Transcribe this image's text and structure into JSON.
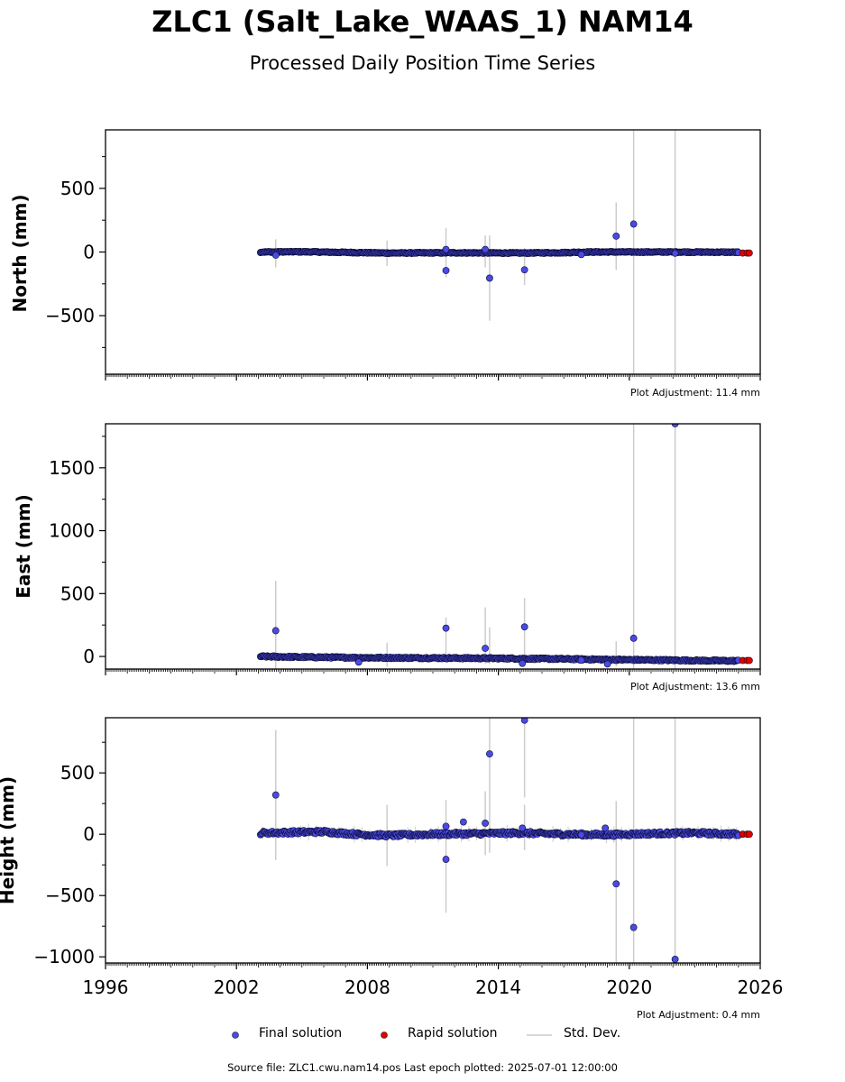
{
  "chart_data": {
    "title": "ZLC1 (Salt_Lake_WAAS_1) NAM14",
    "subtitle": "Processed Daily Position Time Series",
    "type": "scatter",
    "x_ticks": [
      1996,
      2002,
      2008,
      2014,
      2020,
      2026
    ],
    "xlim": [
      1996,
      2026
    ],
    "panels": [
      {
        "ylabel": "North (mm)",
        "ylim": [
          -960,
          960
        ],
        "y_ticks": [
          -500,
          0,
          500
        ],
        "y_tick_labels": [
          "−500",
          "0",
          "500"
        ],
        "adjustment": "Plot Adjustment: 11.4 mm",
        "baseline": [
          [
            2003.1,
            0
          ],
          [
            2005,
            2
          ],
          [
            2007,
            -3
          ],
          [
            2009,
            -8
          ],
          [
            2012,
            -6
          ],
          [
            2015,
            -8
          ],
          [
            2017,
            -5
          ],
          [
            2018,
            0
          ],
          [
            2020,
            0
          ],
          [
            2022,
            0
          ],
          [
            2024,
            -1
          ],
          [
            2025.0,
            -2
          ]
        ],
        "noise": 4,
        "final_points": [
          [
            2003.8,
            -25
          ],
          [
            2011.6,
            20
          ],
          [
            2011.6,
            -145
          ],
          [
            2013.4,
            20
          ],
          [
            2013.6,
            -205
          ],
          [
            2015.2,
            -140
          ],
          [
            2017.8,
            -20
          ],
          [
            2019.4,
            125
          ],
          [
            2020.2,
            220
          ],
          [
            2022.1,
            -10
          ],
          [
            2025.0,
            -5
          ]
        ],
        "rapid_points": [
          [
            2025.2,
            -8
          ],
          [
            2025.4,
            -8
          ],
          [
            2025.5,
            -8
          ]
        ],
        "std_dev": [
          [
            2003.8,
            -120,
            100
          ],
          [
            2008.9,
            -110,
            90
          ],
          [
            2011.6,
            -200,
            190
          ],
          [
            2013.4,
            -120,
            130
          ],
          [
            2013.6,
            -540,
            130
          ],
          [
            2015.2,
            -260,
            30
          ],
          [
            2019.4,
            -140,
            390
          ],
          [
            2020.2,
            -960,
            960
          ],
          [
            2022.1,
            -960,
            960
          ]
        ]
      },
      {
        "ylabel": "East (mm)",
        "ylim": [
          -100,
          1850
        ],
        "y_ticks": [
          0,
          500,
          1000,
          1500
        ],
        "y_tick_labels": [
          "0",
          "500",
          "1000",
          "1500"
        ],
        "adjustment": "Plot Adjustment: 13.6 mm",
        "baseline": [
          [
            2003.1,
            0
          ],
          [
            2005,
            -5
          ],
          [
            2008,
            -10
          ],
          [
            2011,
            -12
          ],
          [
            2014,
            -15
          ],
          [
            2017,
            -20
          ],
          [
            2019,
            -25
          ],
          [
            2021,
            -28
          ],
          [
            2023,
            -32
          ],
          [
            2025.0,
            -35
          ]
        ],
        "noise": 6,
        "final_points": [
          [
            2003.8,
            205
          ],
          [
            2007.6,
            -45
          ],
          [
            2011.6,
            225
          ],
          [
            2013.4,
            65
          ],
          [
            2015.2,
            235
          ],
          [
            2015.1,
            -55
          ],
          [
            2017.8,
            -30
          ],
          [
            2019.0,
            -60
          ],
          [
            2020.2,
            145
          ],
          [
            2022.1,
            1850
          ],
          [
            2025.0,
            -30
          ]
        ],
        "rapid_points": [
          [
            2025.2,
            -32
          ],
          [
            2025.4,
            -32
          ],
          [
            2025.5,
            -32
          ]
        ],
        "std_dev": [
          [
            2003.8,
            -100,
            600
          ],
          [
            2008.9,
            -80,
            110
          ],
          [
            2011.6,
            -40,
            310
          ],
          [
            2013.4,
            -60,
            390
          ],
          [
            2013.6,
            -60,
            230
          ],
          [
            2015.2,
            -60,
            465
          ],
          [
            2019.4,
            -80,
            120
          ],
          [
            2020.2,
            -100,
            1850
          ],
          [
            2022.1,
            -100,
            1850
          ]
        ]
      },
      {
        "ylabel": "Height (mm)",
        "ylim": [
          -1050,
          950
        ],
        "y_ticks": [
          -1000,
          -500,
          0,
          500
        ],
        "y_tick_labels": [
          "−1000",
          "−500",
          "0",
          "500"
        ],
        "adjustment": "Plot Adjustment: 0.4 mm",
        "baseline": [
          [
            2003.1,
            10
          ],
          [
            2004.5,
            15
          ],
          [
            2006,
            20
          ],
          [
            2007.5,
            0
          ],
          [
            2009,
            -10
          ],
          [
            2011,
            0
          ],
          [
            2013,
            5
          ],
          [
            2015,
            10
          ],
          [
            2017,
            0
          ],
          [
            2019,
            -5
          ],
          [
            2021,
            5
          ],
          [
            2023,
            10
          ],
          [
            2025.0,
            0
          ]
        ],
        "noise": 14,
        "final_points": [
          [
            2003.8,
            320
          ],
          [
            2011.6,
            65
          ],
          [
            2011.6,
            -205
          ],
          [
            2012.4,
            100
          ],
          [
            2013.4,
            90
          ],
          [
            2013.6,
            655
          ],
          [
            2015.2,
            930
          ],
          [
            2015.1,
            50
          ],
          [
            2017.8,
            -5
          ],
          [
            2018.9,
            50
          ],
          [
            2019.4,
            -405
          ],
          [
            2020.2,
            -760
          ],
          [
            2022.1,
            -1020
          ],
          [
            2025.0,
            -10
          ]
        ],
        "rapid_points": [
          [
            2025.2,
            0
          ],
          [
            2025.4,
            0
          ],
          [
            2025.5,
            0
          ]
        ],
        "std_dev": [
          [
            2003.8,
            -210,
            850
          ],
          [
            2008.9,
            -260,
            240
          ],
          [
            2011.6,
            -640,
            280
          ],
          [
            2013.4,
            -170,
            350
          ],
          [
            2013.6,
            -150,
            950
          ],
          [
            2015.2,
            -130,
            240
          ],
          [
            2015.2,
            300,
            950
          ],
          [
            2019.4,
            -1050,
            270
          ],
          [
            2020.2,
            -1050,
            950
          ],
          [
            2022.1,
            -1050,
            950
          ]
        ]
      }
    ],
    "legend": {
      "final_label": "Final solution",
      "rapid_label": "Rapid solution",
      "std_label": "Std. Dev.",
      "placement": "bottom-center"
    },
    "colors": {
      "final": "#4a4ae6",
      "final_edge": "#0a0a30",
      "rapid": "#e00000",
      "std": "#cccccc"
    }
  },
  "footer": "Source file: ZLC1.cwu.nam14.pos  Last epoch plotted: 2025-07-01 12:00:00"
}
